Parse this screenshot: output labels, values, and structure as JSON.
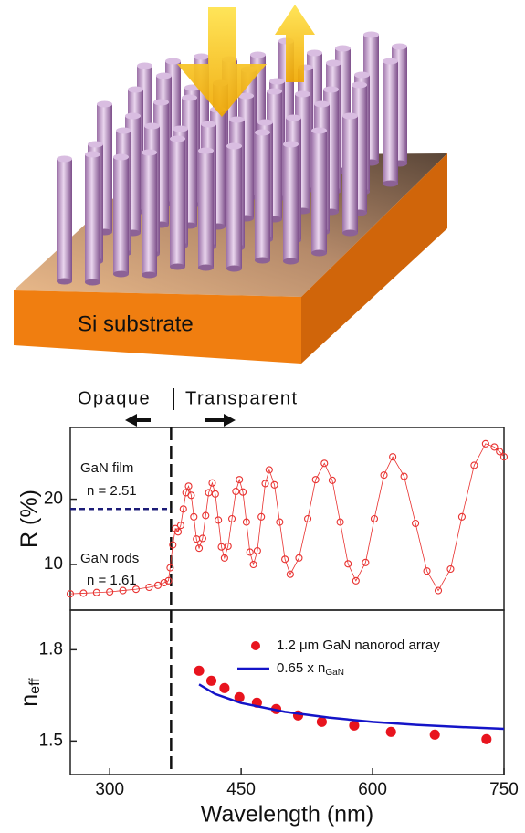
{
  "illustration": {
    "label": "Si substrate"
  },
  "header": {
    "left": "Opaque",
    "right": "Transparent"
  },
  "chart_data": [
    {
      "type": "scatter",
      "ylabel": "R (%)",
      "xlim": [
        255,
        750
      ],
      "ylim": [
        3,
        31
      ],
      "yticks": [
        10,
        20
      ],
      "divider_x": 370,
      "reference_line": {
        "y": 18.5,
        "x": [
          255,
          370
        ],
        "color": "#1c1c78"
      },
      "annotations": [
        "GaN film",
        "n = 2.51",
        "GaN rods",
        "n = 1.61"
      ],
      "series": [
        {
          "color": "#e8312f",
          "marker": "open-circle",
          "x": [
            255,
            270,
            285,
            300,
            315,
            330,
            345,
            355,
            362,
            367,
            369,
            372,
            375,
            378,
            381,
            384,
            387,
            390,
            393,
            396,
            399,
            402,
            406,
            409.5,
            413,
            417,
            420.5,
            424,
            427.5,
            431,
            435,
            439.5,
            444,
            448,
            452,
            456,
            460,
            464,
            468.5,
            473,
            477.5,
            482,
            488,
            494,
            500,
            506,
            516,
            526,
            535,
            545,
            554,
            563,
            572,
            581,
            592,
            602,
            613,
            623,
            636,
            649,
            662,
            675,
            689,
            702,
            716,
            729,
            739,
            745,
            750
          ],
          "values": [
            5.5,
            5.6,
            5.7,
            5.8,
            6.0,
            6.2,
            6.5,
            6.8,
            7.2,
            7.5,
            9.5,
            13,
            15.5,
            15,
            16.0,
            18.5,
            21.0,
            22,
            20.6,
            17.3,
            13.9,
            12.5,
            14.0,
            17.5,
            21.0,
            22.5,
            20.8,
            16.8,
            12.7,
            11,
            12.8,
            17,
            21.2,
            23,
            21.1,
            16.5,
            11.9,
            10,
            12.1,
            17.3,
            22.4,
            24.5,
            22.2,
            16.5,
            10.8,
            8.5,
            11.0,
            17.0,
            23.0,
            25.5,
            22.9,
            16.5,
            10.1,
            7.5,
            10.3,
            17.0,
            23.7,
            26.5,
            23.5,
            16.3,
            9.0,
            6,
            9.3,
            17.3,
            25.2,
            28.5,
            28.0,
            27.3,
            26.5
          ]
        }
      ]
    },
    {
      "type": "scatter",
      "ylabel": "n",
      "ylabel_sub": "eff",
      "xlabel": "Wavelength (nm)",
      "xlim": [
        255,
        750
      ],
      "xticks": [
        300,
        450,
        600,
        750
      ],
      "ylim": [
        1.39,
        1.93
      ],
      "yticks": [
        1.5,
        1.8
      ],
      "divider_x": 370,
      "series": [
        {
          "name": "1.2 μm GaN nanorod array",
          "color": "#e8141e",
          "marker": "dot",
          "x": [
            402,
            416,
            431,
            448,
            468,
            490,
            515,
            542,
            579,
            621,
            671,
            730
          ],
          "values": [
            1.731,
            1.698,
            1.674,
            1.644,
            1.626,
            1.605,
            1.584,
            1.563,
            1.551,
            1.53,
            1.521,
            1.506
          ]
        },
        {
          "name": "0.65 x n",
          "name_sub": "GaN",
          "color": "#1414c8",
          "marker": "line",
          "x": [
            402,
            420,
            450,
            500,
            550,
            600,
            650,
            700,
            750
          ],
          "values": [
            1.686,
            1.655,
            1.625,
            1.596,
            1.577,
            1.563,
            1.553,
            1.546,
            1.54
          ]
        }
      ]
    }
  ]
}
